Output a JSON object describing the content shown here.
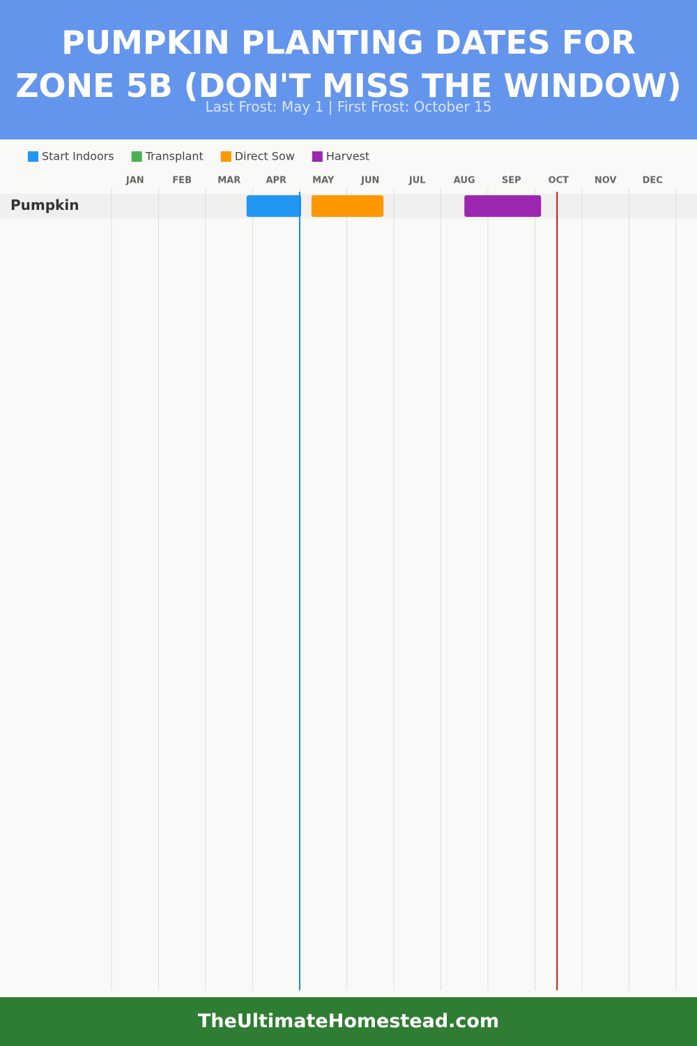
{
  "chart_data": {
    "type": "gantt",
    "title": "PUMPKIN PLANTING DATES FOR ZONE 5B (DON'T MISS THE WINDOW)",
    "subtitle": "Last Frost: May 1 | First Frost: October 15",
    "categories": [
      "JAN",
      "FEB",
      "MAR",
      "APR",
      "MAY",
      "JUN",
      "JUL",
      "AUG",
      "SEP",
      "OCT",
      "NOV",
      "DEC"
    ],
    "rows": [
      "Pumpkin"
    ],
    "xlim": [
      0,
      12
    ],
    "series": [
      {
        "name": "Start Indoors",
        "color": "#2196f3",
        "start": [
          2.87
        ],
        "end": [
          4.03
        ]
      },
      {
        "name": "Transplant",
        "color": "#4caf50",
        "start": [
          null
        ],
        "end": [
          null
        ]
      },
      {
        "name": "Direct Sow",
        "color": "#ff9800",
        "start": [
          4.25
        ],
        "end": [
          5.78
        ]
      },
      {
        "name": "Harvest",
        "color": "#9c27b0",
        "start": [
          7.5
        ],
        "end": [
          9.13
        ]
      }
    ],
    "markers": [
      {
        "value": 4.0,
        "color": "#1e88e5"
      },
      {
        "value": 9.47,
        "color": "#b71c1c"
      }
    ],
    "grid": true,
    "footer": "TheUltimateHomestead.com"
  }
}
